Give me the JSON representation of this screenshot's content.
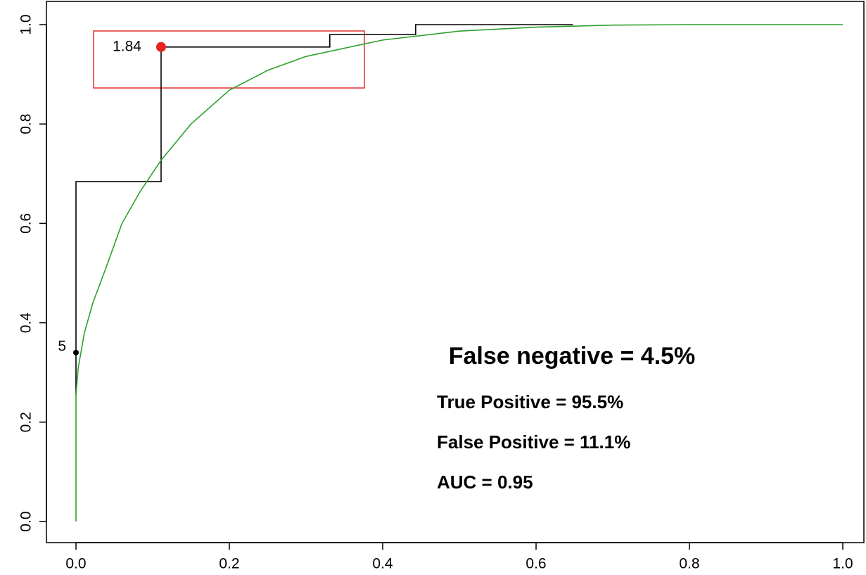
{
  "chart_data": {
    "type": "line",
    "xlim": [
      0,
      1
    ],
    "ylim": [
      0,
      1
    ],
    "xticks": [
      {
        "value": 0,
        "label": "0.0"
      },
      0.2,
      0.4,
      0.6,
      0.8,
      {
        "value": 1,
        "label": "1.0"
      }
    ],
    "yticks": [
      {
        "value": 0,
        "label": "0.0"
      },
      0.2,
      0.4,
      0.6,
      0.8,
      {
        "value": 1,
        "label": "1.0"
      }
    ],
    "series": [
      {
        "color": "#000000",
        "x": [
          0,
          0,
          0.111,
          0.111,
          0.331,
          0.331,
          0.443,
          0.443,
          0.648
        ],
        "values": [
          0.255,
          0.684,
          0.684,
          0.955,
          0.955,
          0.98,
          0.98,
          1.0,
          1.0
        ]
      },
      {
        "color": "#2ca02c",
        "x": [
          0,
          0,
          0.003,
          0.011,
          0.022,
          0.039,
          0.06,
          0.084,
          0.111,
          0.15,
          0.2,
          0.25,
          0.3,
          0.4,
          0.5,
          0.6,
          0.7,
          0.8,
          1.0
        ],
        "values": [
          0,
          0.255,
          0.31,
          0.38,
          0.44,
          0.51,
          0.6,
          0.665,
          0.727,
          0.8,
          0.868,
          0.908,
          0.936,
          0.969,
          0.987,
          0.995,
          0.999,
          1.0,
          1.0
        ]
      }
    ],
    "points": [
      {
        "x": 0,
        "y": 0.34,
        "label": "5",
        "color": "#000000"
      },
      {
        "x": 0.111,
        "y": 0.955,
        "label": "1.84",
        "color": "#e8221e"
      }
    ],
    "annotations": [
      "False negative = 4.5%",
      "True Positive = 95.5%",
      "False Positive = 11.1%",
      "AUC = 0.95"
    ]
  }
}
